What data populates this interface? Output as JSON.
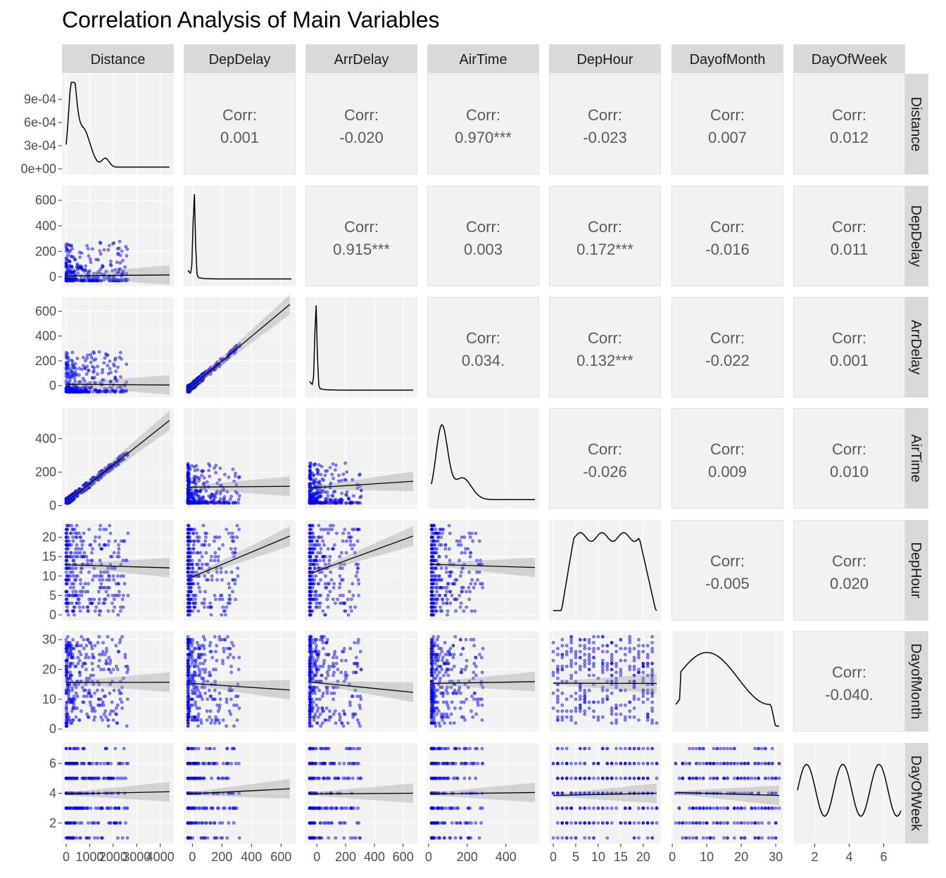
{
  "title": "Correlation Analysis of Main Variables",
  "chart_data": {
    "type": "scatter",
    "subtype": "pairs-matrix",
    "variables": [
      "Distance",
      "DepDelay",
      "ArrDelay",
      "AirTime",
      "DepHour",
      "DayofMonth",
      "DayOfWeek"
    ],
    "corr_label": "Corr:",
    "correlations": [
      {
        "row": "Distance",
        "col": "DepDelay",
        "value": "0.001"
      },
      {
        "row": "Distance",
        "col": "ArrDelay",
        "value": "-0.020"
      },
      {
        "row": "Distance",
        "col": "AirTime",
        "value": "0.970***"
      },
      {
        "row": "Distance",
        "col": "DepHour",
        "value": "-0.023"
      },
      {
        "row": "Distance",
        "col": "DayofMonth",
        "value": "0.007"
      },
      {
        "row": "Distance",
        "col": "DayOfWeek",
        "value": "0.012"
      },
      {
        "row": "DepDelay",
        "col": "ArrDelay",
        "value": "0.915***"
      },
      {
        "row": "DepDelay",
        "col": "AirTime",
        "value": "0.003"
      },
      {
        "row": "DepDelay",
        "col": "DepHour",
        "value": "0.172***"
      },
      {
        "row": "DepDelay",
        "col": "DayofMonth",
        "value": "-0.016"
      },
      {
        "row": "DepDelay",
        "col": "DayOfWeek",
        "value": "0.011"
      },
      {
        "row": "ArrDelay",
        "col": "AirTime",
        "value": "0.034."
      },
      {
        "row": "ArrDelay",
        "col": "DepHour",
        "value": "0.132***"
      },
      {
        "row": "ArrDelay",
        "col": "DayofMonth",
        "value": "-0.022"
      },
      {
        "row": "ArrDelay",
        "col": "DayOfWeek",
        "value": "0.001"
      },
      {
        "row": "AirTime",
        "col": "DepHour",
        "value": "-0.026"
      },
      {
        "row": "AirTime",
        "col": "DayofMonth",
        "value": "0.009"
      },
      {
        "row": "AirTime",
        "col": "DayOfWeek",
        "value": "0.010"
      },
      {
        "row": "DepHour",
        "col": "DayofMonth",
        "value": "-0.005"
      },
      {
        "row": "DepHour",
        "col": "DayOfWeek",
        "value": "0.020"
      },
      {
        "row": "DayofMonth",
        "col": "DayOfWeek",
        "value": "-0.040."
      }
    ],
    "ranges": {
      "Distance": [
        0,
        4400
      ],
      "DepDelay": [
        -30,
        670
      ],
      "ArrDelay": [
        -50,
        670
      ],
      "AirTime": [
        15,
        550
      ],
      "DepHour": [
        0,
        23
      ],
      "DayofMonth": [
        1,
        31
      ],
      "DayOfWeek": [
        1,
        7
      ]
    },
    "x_ticks": {
      "Distance": [
        "0",
        "1000",
        "2000",
        "3000",
        "4000"
      ],
      "DepDelay": [
        "0",
        "200",
        "400",
        "600"
      ],
      "ArrDelay": [
        "0",
        "200",
        "400",
        "600"
      ],
      "AirTime": [
        "0",
        "200",
        "400"
      ],
      "DepHour": [
        "0",
        "5",
        "10",
        "15",
        "20"
      ],
      "DayofMonth": [
        "0",
        "10",
        "20",
        "30"
      ],
      "DayOfWeek": [
        "2",
        "4",
        "6"
      ]
    },
    "x_tick_values": {
      "Distance": [
        0,
        1000,
        2000,
        3000,
        4000
      ],
      "DepDelay": [
        0,
        200,
        400,
        600
      ],
      "ArrDelay": [
        0,
        200,
        400,
        600
      ],
      "AirTime": [
        0,
        200,
        400
      ],
      "DepHour": [
        0,
        5,
        10,
        15,
        20
      ],
      "DayofMonth": [
        0,
        10,
        20,
        30
      ],
      "DayOfWeek": [
        2,
        4,
        6
      ]
    },
    "y_ticks": {
      "Distance": [
        "0e+00",
        "3e-04",
        "6e-04",
        "9e-04"
      ],
      "DepDelay": [
        "0",
        "200",
        "400",
        "600"
      ],
      "ArrDelay": [
        "0",
        "200",
        "400",
        "600"
      ],
      "AirTime": [
        "0",
        "200",
        "400"
      ],
      "DepHour": [
        "0",
        "5",
        "10",
        "15",
        "20"
      ],
      "DayofMonth": [
        "0",
        "10",
        "20",
        "30"
      ],
      "DayOfWeek": [
        "2",
        "4",
        "6"
      ]
    },
    "y_tick_values": {
      "Distance": [
        0,
        0.0003,
        0.0006,
        0.0009
      ],
      "DepDelay": [
        0,
        200,
        400,
        600
      ],
      "ArrDelay": [
        0,
        200,
        400,
        600
      ],
      "AirTime": [
        0,
        200,
        400
      ],
      "DepHour": [
        0,
        5,
        10,
        15,
        20
      ],
      "DayofMonth": [
        0,
        10,
        20,
        30
      ],
      "DayOfWeek": [
        2,
        4,
        6
      ]
    },
    "distance_density_range": [
      0,
      0.00112
    ],
    "fit_lines": [
      {
        "row": "DepDelay",
        "col": "Distance",
        "start": [
          0,
          8
        ],
        "end": [
          4400,
          15
        ]
      },
      {
        "row": "ArrDelay",
        "col": "Distance",
        "start": [
          0,
          12
        ],
        "end": [
          4400,
          5
        ]
      },
      {
        "row": "ArrDelay",
        "col": "DepDelay",
        "start": [
          -30,
          -30
        ],
        "end": [
          660,
          655
        ]
      },
      {
        "row": "AirTime",
        "col": "Distance",
        "start": [
          0,
          20
        ],
        "end": [
          4400,
          510
        ]
      },
      {
        "row": "AirTime",
        "col": "DepDelay",
        "start": [
          -30,
          110
        ],
        "end": [
          660,
          115
        ]
      },
      {
        "row": "AirTime",
        "col": "ArrDelay",
        "start": [
          -50,
          105
        ],
        "end": [
          670,
          145
        ]
      },
      {
        "row": "DepHour",
        "col": "Distance",
        "start": [
          0,
          12.9
        ],
        "end": [
          4400,
          12.1
        ]
      },
      {
        "row": "DepHour",
        "col": "DepDelay",
        "start": [
          -30,
          9.3
        ],
        "end": [
          660,
          20.3
        ]
      },
      {
        "row": "DepHour",
        "col": "ArrDelay",
        "start": [
          -50,
          10.6
        ],
        "end": [
          670,
          20.3
        ]
      },
      {
        "row": "DepHour",
        "col": "AirTime",
        "start": [
          15,
          13.0
        ],
        "end": [
          550,
          12.2
        ]
      },
      {
        "row": "DayofMonth",
        "col": "Distance",
        "start": [
          0,
          15.6
        ],
        "end": [
          4400,
          15.7
        ]
      },
      {
        "row": "DayofMonth",
        "col": "DepDelay",
        "start": [
          -30,
          15.4
        ],
        "end": [
          660,
          13.1
        ]
      },
      {
        "row": "DayofMonth",
        "col": "ArrDelay",
        "start": [
          -50,
          15.8
        ],
        "end": [
          670,
          12.3
        ]
      },
      {
        "row": "DayofMonth",
        "col": "AirTime",
        "start": [
          15,
          15.3
        ],
        "end": [
          550,
          15.9
        ]
      },
      {
        "row": "DayofMonth",
        "col": "DepHour",
        "start": [
          0,
          15.4
        ],
        "end": [
          23,
          15.3
        ]
      },
      {
        "row": "DayOfWeek",
        "col": "Distance",
        "start": [
          0,
          3.95
        ],
        "end": [
          4400,
          4.1
        ]
      },
      {
        "row": "DayOfWeek",
        "col": "DepDelay",
        "start": [
          -30,
          3.95
        ],
        "end": [
          660,
          4.3
        ]
      },
      {
        "row": "DayOfWeek",
        "col": "ArrDelay",
        "start": [
          -50,
          3.95
        ],
        "end": [
          670,
          4.0
        ]
      },
      {
        "row": "DayOfWeek",
        "col": "AirTime",
        "start": [
          15,
          3.95
        ],
        "end": [
          550,
          4.05
        ]
      },
      {
        "row": "DayOfWeek",
        "col": "DepHour",
        "start": [
          0,
          3.85
        ],
        "end": [
          23,
          4.0
        ]
      },
      {
        "row": "DayOfWeek",
        "col": "DayofMonth",
        "start": [
          1,
          4.05
        ],
        "end": [
          31,
          3.85
        ]
      }
    ],
    "grid": true,
    "background": "#f2f2f2",
    "strip_fill": "#d9d9d9",
    "point_color": "#0000ff",
    "line_color": "#000000",
    "ci_fill": "#999999"
  }
}
